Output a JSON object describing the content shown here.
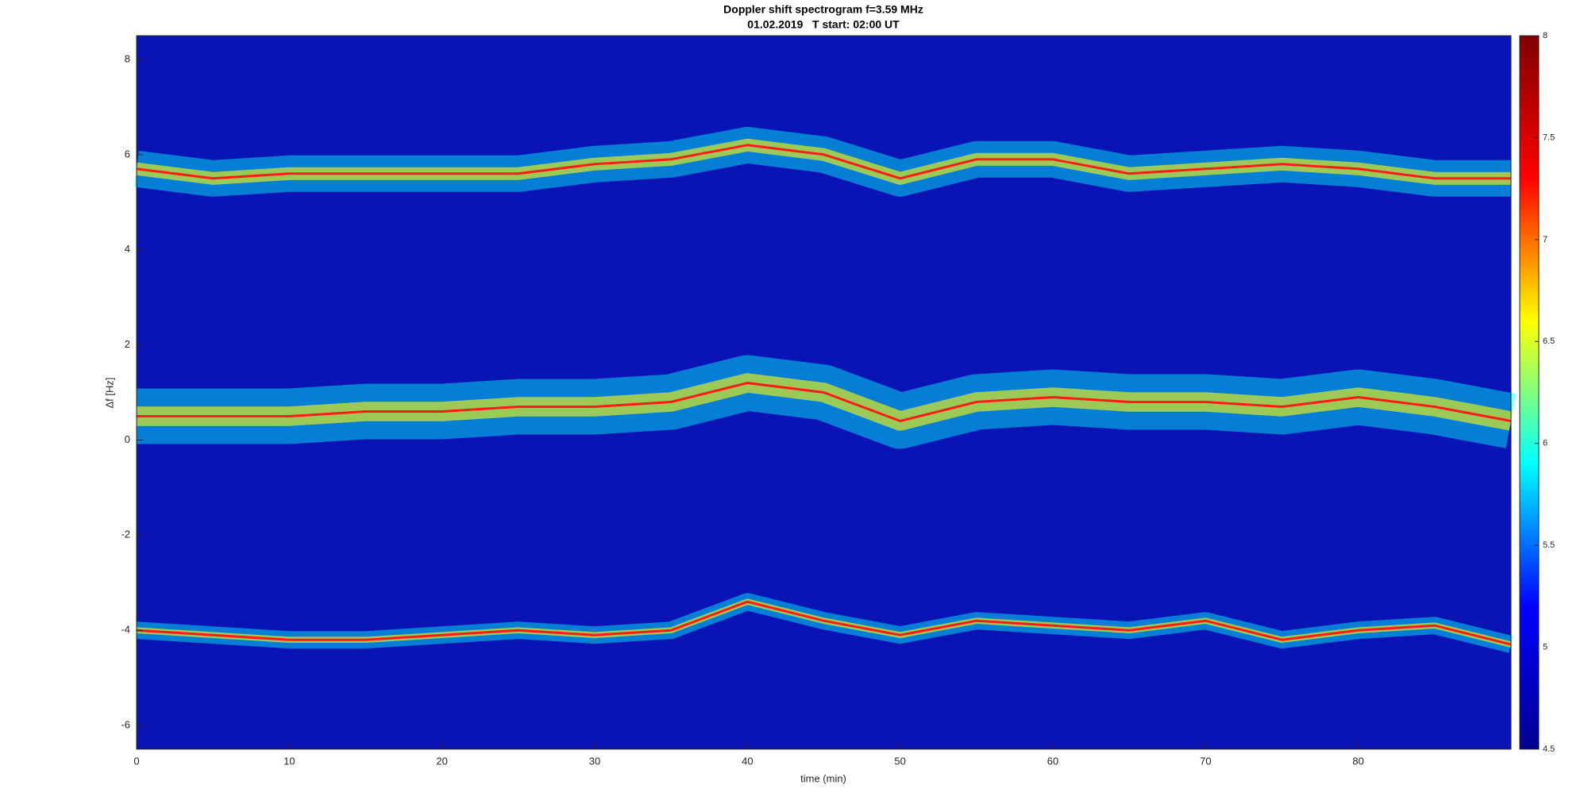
{
  "chart_data": {
    "type": "spectrogram",
    "title": "Doppler shift spectrogram f=3.59 MHz",
    "subtitle": "01.02.2019   T start: 02:00 UT",
    "x_label": "time (min)",
    "y_label": "Δf [Hz]",
    "x": [
      0,
      5,
      10,
      15,
      20,
      25,
      30,
      35,
      40,
      45,
      50,
      55,
      60,
      65,
      70,
      75,
      80,
      85,
      90
    ],
    "series": [
      {
        "color": "#ff1a1a",
        "values": [
          5.7,
          5.5,
          5.6,
          5.6,
          5.6,
          5.6,
          5.8,
          5.9,
          6.2,
          6.0,
          5.5,
          5.9,
          5.9,
          5.6,
          5.7,
          5.8,
          5.7,
          5.5,
          5.5
        ]
      },
      {
        "color": "#ff1a1a",
        "values": [
          0.5,
          0.5,
          0.5,
          0.6,
          0.6,
          0.7,
          0.7,
          0.8,
          1.2,
          1.0,
          0.4,
          0.8,
          0.9,
          0.8,
          0.8,
          0.7,
          0.9,
          0.7,
          0.4
        ]
      },
      {
        "color": "#ff1a1a",
        "values": [
          -4.0,
          -4.1,
          -4.2,
          -4.2,
          -4.1,
          -4.0,
          -4.1,
          -4.0,
          -3.4,
          -3.8,
          -4.1,
          -3.8,
          -3.9,
          -4.0,
          -3.8,
          -4.2,
          -4.0,
          -3.9,
          -4.3
        ]
      }
    ],
    "xlim": [
      0,
      90
    ],
    "xticks": [
      0,
      10,
      20,
      30,
      40,
      50,
      60,
      70,
      80
    ],
    "ylim": [
      -6.5,
      8.5
    ],
    "yticks": [
      -6,
      -4,
      -2,
      0,
      2,
      4,
      6,
      8
    ],
    "clim": [
      4.5,
      8
    ],
    "cticks": [
      4.5,
      5,
      5.5,
      6,
      6.5,
      7,
      7.5,
      8
    ],
    "background_color": "#0a14b4",
    "colormap": [
      "#00008f",
      "#0000ff",
      "#00ffff",
      "#ffff00",
      "#ff0000",
      "#800000"
    ]
  }
}
